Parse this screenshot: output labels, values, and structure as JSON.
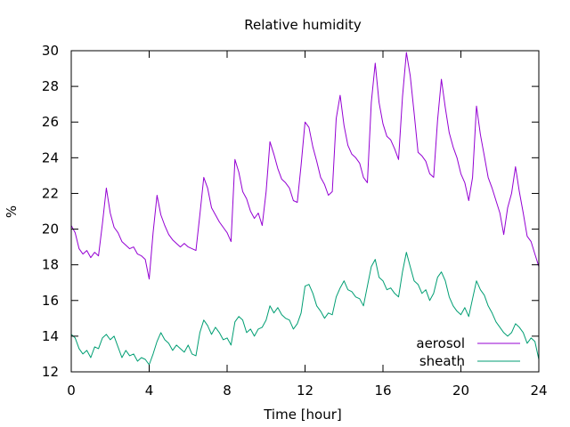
{
  "chart_data": {
    "type": "line",
    "title": "Relative humidity",
    "xlabel": "Time [hour]",
    "ylabel": "%",
    "xlim": [
      0,
      24
    ],
    "ylim": [
      12,
      30
    ],
    "xticks": [
      0,
      4,
      8,
      12,
      16,
      20,
      24
    ],
    "yticks": [
      12,
      14,
      16,
      18,
      20,
      22,
      24,
      26,
      28,
      30
    ],
    "grid": false,
    "legend_position": "bottom-right",
    "series": [
      {
        "name": "aerosol",
        "color": "#9400d3",
        "x": [
          0,
          0.2,
          0.4,
          0.6,
          0.8,
          1.0,
          1.2,
          1.4,
          1.6,
          1.8,
          2.0,
          2.2,
          2.4,
          2.6,
          2.8,
          3.0,
          3.2,
          3.4,
          3.6,
          3.8,
          4.0,
          4.2,
          4.4,
          4.6,
          4.8,
          5.0,
          5.2,
          5.4,
          5.6,
          5.8,
          6.0,
          6.2,
          6.4,
          6.6,
          6.8,
          7.0,
          7.2,
          7.4,
          7.6,
          7.8,
          8.0,
          8.2,
          8.4,
          8.6,
          8.8,
          9.0,
          9.2,
          9.4,
          9.6,
          9.8,
          10.0,
          10.2,
          10.4,
          10.6,
          10.8,
          11.0,
          11.2,
          11.4,
          11.6,
          11.8,
          12.0,
          12.2,
          12.4,
          12.6,
          12.8,
          13.0,
          13.2,
          13.4,
          13.6,
          13.8,
          14.0,
          14.2,
          14.4,
          14.6,
          14.8,
          15.0,
          15.2,
          15.4,
          15.6,
          15.8,
          16.0,
          16.2,
          16.4,
          16.6,
          16.8,
          17.0,
          17.2,
          17.4,
          17.6,
          17.8,
          18.0,
          18.2,
          18.4,
          18.6,
          18.8,
          19.0,
          19.2,
          19.4,
          19.6,
          19.8,
          20.0,
          20.2,
          20.4,
          20.6,
          20.8,
          21.0,
          21.2,
          21.4,
          21.6,
          21.8,
          22.0,
          22.2,
          22.4,
          22.6,
          22.8,
          23.0,
          23.2,
          23.4,
          23.6,
          23.8,
          24.0
        ],
        "values": [
          20.2,
          19.8,
          18.9,
          18.6,
          18.8,
          18.4,
          18.7,
          18.5,
          20.3,
          22.3,
          20.9,
          20.1,
          19.8,
          19.3,
          19.1,
          18.9,
          19.0,
          18.6,
          18.5,
          18.3,
          17.2,
          19.8,
          21.9,
          20.8,
          20.2,
          19.7,
          19.4,
          19.2,
          19.0,
          19.2,
          19.0,
          18.9,
          18.8,
          20.8,
          22.9,
          22.3,
          21.2,
          20.8,
          20.4,
          20.1,
          19.8,
          19.3,
          23.9,
          23.2,
          22.1,
          21.7,
          21.0,
          20.6,
          20.9,
          20.2,
          22.1,
          24.9,
          24.2,
          23.4,
          22.8,
          22.6,
          22.3,
          21.6,
          21.5,
          23.6,
          26.0,
          25.7,
          24.6,
          23.8,
          22.9,
          22.5,
          21.9,
          22.1,
          26.2,
          27.5,
          25.8,
          24.7,
          24.2,
          24.0,
          23.7,
          22.9,
          22.6,
          27.1,
          29.3,
          27.1,
          25.9,
          25.2,
          25.0,
          24.5,
          23.9,
          27.4,
          29.9,
          28.6,
          26.5,
          24.3,
          24.1,
          23.8,
          23.1,
          22.9,
          26.1,
          28.4,
          26.8,
          25.4,
          24.6,
          24.0,
          23.1,
          22.6,
          21.6,
          22.9,
          26.9,
          25.3,
          24.1,
          22.9,
          22.3,
          21.6,
          20.9,
          19.7,
          21.2,
          22.0,
          23.5,
          22.1,
          20.9,
          19.6,
          19.3,
          18.6,
          17.9
        ]
      },
      {
        "name": "sheath",
        "color": "#009e73",
        "x": [
          0,
          0.2,
          0.4,
          0.6,
          0.8,
          1.0,
          1.2,
          1.4,
          1.6,
          1.8,
          2.0,
          2.2,
          2.4,
          2.6,
          2.8,
          3.0,
          3.2,
          3.4,
          3.6,
          3.8,
          4.0,
          4.2,
          4.4,
          4.6,
          4.8,
          5.0,
          5.2,
          5.4,
          5.6,
          5.8,
          6.0,
          6.2,
          6.4,
          6.6,
          6.8,
          7.0,
          7.2,
          7.4,
          7.6,
          7.8,
          8.0,
          8.2,
          8.4,
          8.6,
          8.8,
          9.0,
          9.2,
          9.4,
          9.6,
          9.8,
          10.0,
          10.2,
          10.4,
          10.6,
          10.8,
          11.0,
          11.2,
          11.4,
          11.6,
          11.8,
          12.0,
          12.2,
          12.4,
          12.6,
          12.8,
          13.0,
          13.2,
          13.4,
          13.6,
          13.8,
          14.0,
          14.2,
          14.4,
          14.6,
          14.8,
          15.0,
          15.2,
          15.4,
          15.6,
          15.8,
          16.0,
          16.2,
          16.4,
          16.6,
          16.8,
          17.0,
          17.2,
          17.4,
          17.6,
          17.8,
          18.0,
          18.2,
          18.4,
          18.6,
          18.8,
          19.0,
          19.2,
          19.4,
          19.6,
          19.8,
          20.0,
          20.2,
          20.4,
          20.6,
          20.8,
          21.0,
          21.2,
          21.4,
          21.6,
          21.8,
          22.0,
          22.2,
          22.4,
          22.6,
          22.8,
          23.0,
          23.2,
          23.4,
          23.6,
          23.8,
          24.0
        ],
        "values": [
          14.1,
          13.9,
          13.3,
          13.0,
          13.2,
          12.8,
          13.4,
          13.3,
          13.9,
          14.1,
          13.8,
          14.0,
          13.4,
          12.8,
          13.2,
          12.9,
          13.0,
          12.6,
          12.8,
          12.7,
          12.4,
          13.0,
          13.7,
          14.2,
          13.8,
          13.6,
          13.2,
          13.5,
          13.3,
          13.1,
          13.5,
          13.0,
          12.9,
          14.2,
          14.9,
          14.6,
          14.1,
          14.5,
          14.2,
          13.8,
          13.9,
          13.5,
          14.8,
          15.1,
          14.9,
          14.2,
          14.4,
          14.0,
          14.4,
          14.5,
          14.9,
          15.7,
          15.3,
          15.6,
          15.2,
          15.0,
          14.9,
          14.4,
          14.7,
          15.3,
          16.8,
          16.9,
          16.4,
          15.7,
          15.4,
          15.0,
          15.3,
          15.2,
          16.2,
          16.7,
          17.1,
          16.6,
          16.5,
          16.2,
          16.1,
          15.7,
          16.8,
          17.9,
          18.3,
          17.3,
          17.1,
          16.6,
          16.7,
          16.4,
          16.2,
          17.6,
          18.7,
          17.9,
          17.1,
          16.9,
          16.4,
          16.6,
          16.0,
          16.4,
          17.3,
          17.6,
          17.1,
          16.2,
          15.7,
          15.4,
          15.2,
          15.6,
          15.1,
          16.1,
          17.1,
          16.6,
          16.3,
          15.7,
          15.3,
          14.8,
          14.5,
          14.2,
          14.0,
          14.2,
          14.7,
          14.5,
          14.2,
          13.6,
          13.9,
          13.7,
          12.7
        ]
      }
    ]
  }
}
